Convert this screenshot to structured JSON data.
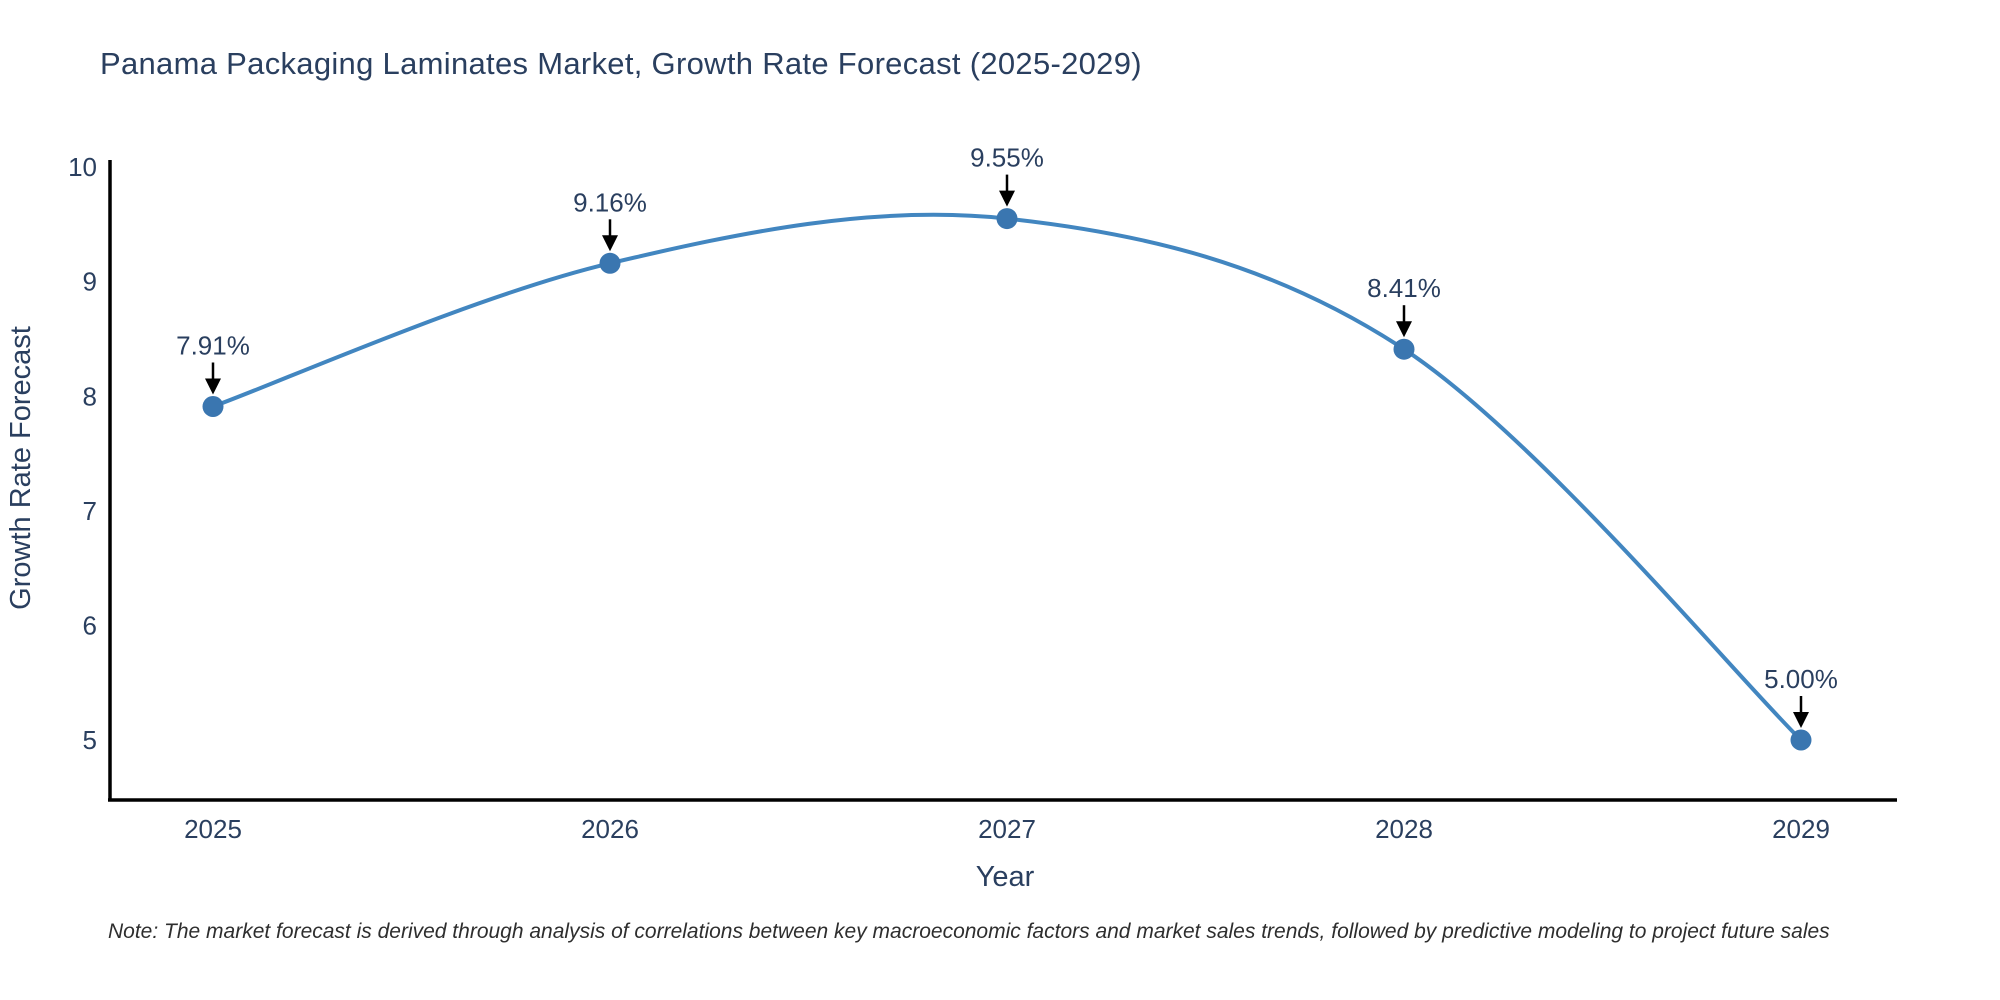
{
  "title": {
    "text": "Panama Packaging Laminates Market, Growth Rate Forecast (2025-2029)",
    "color": "#2a3f5f"
  },
  "note": {
    "text": "Note: The market forecast is derived through analysis of correlations between key macroeconomic factors and market sales trends, followed by predictive modeling to project future sales"
  },
  "chart_data": {
    "type": "line",
    "line_shape": "spline",
    "title": "Panama Packaging Laminates Market, Growth Rate Forecast (2025-2029)",
    "xlabel": "Year",
    "ylabel": "Growth Rate Forecast",
    "categories": [
      2025,
      2026,
      2027,
      2028,
      2029
    ],
    "series": [
      {
        "name": "Growth Rate Forecast",
        "values": [
          7.91,
          9.16,
          9.55,
          8.41,
          5.0
        ]
      }
    ],
    "point_labels": [
      "7.91%",
      "9.16%",
      "9.55%",
      "8.41%",
      "5.00%"
    ],
    "yticks": [
      5,
      6,
      7,
      8,
      9,
      10
    ],
    "xlim": [
      2024.74,
      2029.24
    ],
    "ylim": [
      4.48,
      10.06
    ],
    "grid": false,
    "legend": false,
    "annotations_have_arrows": true,
    "colors": {
      "line": "#4286c0",
      "marker": "#3a76b0",
      "axis": "#000000",
      "tick_text": "#2a3f5f",
      "axis_title_text": "#2a3f5f",
      "annotation_text": "#2a3f5f",
      "arrow": "#000000",
      "background": "#ffffff"
    }
  }
}
